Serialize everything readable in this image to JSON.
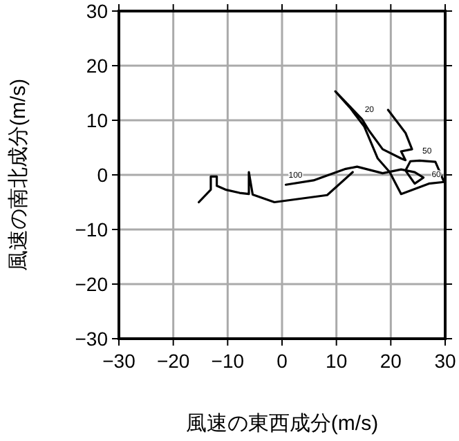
{
  "chart_data": {
    "type": "line",
    "xlabel": "風速の東西成分(m/s)",
    "ylabel": "風速の南北成分(m/s)",
    "xlim": [
      -30,
      30
    ],
    "ylim": [
      -30,
      30
    ],
    "xticks": [
      {
        "value": -30,
        "label": "−30"
      },
      {
        "value": -20,
        "label": "−20"
      },
      {
        "value": -10,
        "label": "−10"
      },
      0,
      10,
      20,
      30
    ],
    "yticks": [
      {
        "value": -30,
        "label": "−30"
      },
      {
        "value": -20,
        "label": "−20"
      },
      {
        "value": -10,
        "label": "−10"
      },
      0,
      10,
      20,
      30
    ],
    "grid": true,
    "marker": "none",
    "line_style": "solid",
    "series": [
      {
        "color": "#000000",
        "x": [
          0.7,
          5.8,
          11.7,
          13.8,
          18.5,
          21.9,
          24.4,
          26.0,
          24.4,
          22.7,
          23.6,
          25.3,
          28.2,
          29.8,
          27.0,
          21.9,
          19.8,
          17.6,
          15.1,
          12.5,
          9.8,
          14.7,
          16.0,
          18.5,
          21.9,
          22.7,
          21.9,
          23.9,
          22.7,
          19.5
        ],
        "values": [
          -1.8,
          -1.0,
          1.1,
          1.5,
          0.3,
          1.0,
          0.5,
          -0.5,
          -1.6,
          0.8,
          2.5,
          2.6,
          2.4,
          -1.3,
          -1.6,
          -3.5,
          0.5,
          3.0,
          8.9,
          12.3,
          15.3,
          10.2,
          8.1,
          4.7,
          3.0,
          2.7,
          4.3,
          4.7,
          7.7,
          11.9
        ]
      },
      {
        "color": "#000000",
        "x": [
          13.0,
          8.3,
          -1.4,
          -5.4,
          -6.1,
          -6.1,
          -7.8,
          -10.4,
          -12.0,
          -12.0,
          -13.1,
          -13.1,
          -15.3
        ],
        "values": [
          0.5,
          -3.7,
          -5.0,
          -3.6,
          0.5,
          -3.5,
          -3.3,
          -2.7,
          -2.0,
          -0.3,
          -0.3,
          -2.7,
          -5.0
        ]
      }
    ],
    "annotations": [
      {
        "text": "20",
        "x": 14.7,
        "y": 10.2
      },
      {
        "text": "50",
        "x": 25.3,
        "y": 2.6
      },
      {
        "text": "60",
        "x": 27.0,
        "y": -1.6
      },
      {
        "text": "100",
        "x": 0.7,
        "y": -1.8
      }
    ]
  }
}
